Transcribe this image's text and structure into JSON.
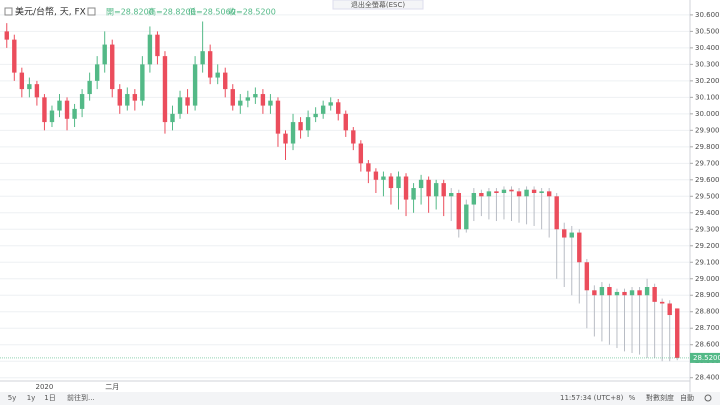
{
  "chart_data": {
    "type": "candlestick",
    "title": "美元/台幣, 天, FX",
    "ohlc_labels": [
      "開=28.8200",
      "高=28.8200",
      "低=28.5060",
      "收=28.5200"
    ],
    "last_price_label": "28.5200",
    "up_color": "#53b987",
    "down_color": "#eb4d5c",
    "categories": [
      null,
      null,
      null,
      null,
      null,
      "2020",
      null,
      null,
      null,
      null,
      null,
      null,
      null,
      null,
      "二月",
      null,
      null,
      null,
      null,
      null,
      null,
      null,
      null,
      null,
      null,
      null,
      null,
      null,
      null,
      null,
      null,
      null,
      null,
      null,
      null,
      null,
      null,
      null,
      null,
      null,
      null,
      null,
      null,
      null,
      null,
      null,
      null,
      null,
      null,
      null,
      null,
      null,
      null,
      null,
      null,
      null,
      null,
      null,
      null,
      null,
      null,
      null,
      null,
      null,
      null,
      null,
      null,
      null,
      null,
      null,
      null,
      null,
      null,
      null,
      null,
      null,
      null,
      null,
      null,
      null,
      null,
      null,
      null,
      null,
      null,
      null,
      null,
      null,
      null,
      null
    ],
    "open": [
      30.5,
      30.45,
      30.25,
      30.15,
      30.18,
      30.1,
      29.95,
      30.02,
      30.08,
      29.97,
      30.03,
      30.12,
      30.2,
      30.3,
      30.42,
      30.15,
      30.05,
      30.12,
      30.08,
      30.3,
      30.48,
      30.35,
      29.95,
      30.0,
      30.1,
      30.05,
      30.3,
      30.38,
      30.22,
      30.25,
      30.15,
      30.05,
      30.08,
      30.1,
      30.12,
      30.05,
      30.08,
      29.88,
      29.82,
      29.95,
      29.9,
      29.98,
      30.0,
      30.05,
      30.07,
      30.0,
      29.9,
      29.82,
      29.7,
      29.65,
      29.6,
      29.62,
      29.55,
      29.62,
      29.48,
      29.55,
      29.6,
      29.5,
      29.58,
      29.5,
      29.52,
      29.3,
      29.45,
      29.52,
      29.5,
      29.53,
      29.52,
      29.54,
      29.53,
      29.5,
      29.54,
      29.52,
      29.53,
      29.5,
      29.3,
      29.25,
      29.28,
      29.1,
      28.93,
      28.9,
      28.95,
      28.9,
      28.92,
      28.9,
      28.93,
      28.9,
      28.95,
      28.86,
      28.85,
      28.82
    ],
    "high": [
      30.55,
      30.48,
      30.28,
      30.22,
      30.2,
      30.12,
      30.05,
      30.12,
      30.1,
      30.06,
      30.15,
      30.25,
      30.35,
      30.5,
      30.45,
      30.18,
      30.16,
      30.15,
      30.35,
      30.53,
      30.5,
      30.38,
      30.05,
      30.14,
      30.15,
      30.35,
      30.56,
      30.42,
      30.3,
      30.28,
      30.18,
      30.12,
      30.14,
      30.16,
      30.15,
      30.12,
      30.1,
      29.9,
      30.0,
      29.98,
      30.02,
      30.04,
      30.08,
      30.1,
      30.09,
      30.02,
      29.92,
      29.84,
      29.72,
      29.67,
      29.65,
      29.64,
      29.65,
      29.64,
      29.58,
      29.63,
      29.62,
      29.6,
      29.6,
      29.55,
      29.54,
      29.48,
      29.55,
      29.54,
      29.55,
      29.55,
      29.56,
      29.56,
      29.55,
      29.56,
      29.56,
      29.55,
      29.55,
      29.52,
      29.34,
      29.32,
      29.3,
      29.12,
      28.96,
      28.98,
      28.97,
      28.94,
      28.94,
      28.95,
      28.95,
      29.0,
      28.97,
      28.88,
      28.87,
      28.82
    ],
    "low": [
      30.4,
      30.2,
      30.1,
      30.1,
      30.05,
      29.9,
      29.92,
      29.98,
      29.9,
      29.92,
      29.98,
      30.08,
      30.15,
      30.25,
      30.1,
      30.0,
      30.02,
      30.02,
      30.05,
      30.25,
      30.3,
      29.88,
      29.9,
      29.97,
      30.0,
      30.02,
      30.25,
      30.18,
      30.18,
      30.1,
      30.02,
      30.0,
      30.04,
      30.06,
      30.0,
      30.0,
      29.8,
      29.72,
      29.78,
      29.85,
      29.86,
      29.95,
      29.97,
      30.02,
      29.96,
      29.86,
      29.78,
      29.65,
      29.58,
      29.52,
      29.5,
      29.45,
      29.42,
      29.38,
      29.4,
      29.45,
      29.4,
      29.42,
      29.38,
      29.35,
      29.25,
      29.28,
      29.35,
      29.38,
      29.36,
      29.35,
      29.36,
      29.35,
      29.34,
      29.33,
      29.32,
      29.3,
      29.25,
      29.0,
      28.95,
      28.9,
      28.85,
      28.7,
      28.65,
      28.62,
      28.6,
      28.58,
      28.56,
      28.55,
      28.54,
      28.52,
      28.52,
      28.5,
      28.5,
      28.506
    ],
    "close": [
      30.45,
      30.25,
      30.15,
      30.18,
      30.1,
      29.95,
      30.02,
      30.08,
      29.97,
      30.03,
      30.12,
      30.2,
      30.3,
      30.42,
      30.15,
      30.05,
      30.12,
      30.08,
      30.3,
      30.48,
      30.35,
      29.95,
      30.0,
      30.1,
      30.05,
      30.3,
      30.38,
      30.22,
      30.25,
      30.15,
      30.05,
      30.08,
      30.1,
      30.12,
      30.05,
      30.08,
      29.88,
      29.82,
      29.95,
      29.9,
      29.98,
      30.0,
      30.05,
      30.07,
      30.0,
      29.9,
      29.82,
      29.7,
      29.65,
      29.6,
      29.62,
      29.55,
      29.62,
      29.48,
      29.55,
      29.6,
      29.5,
      29.58,
      29.5,
      29.52,
      29.3,
      29.45,
      29.52,
      29.5,
      29.53,
      29.52,
      29.54,
      29.53,
      29.5,
      29.54,
      29.52,
      29.53,
      29.5,
      29.3,
      29.25,
      29.28,
      29.1,
      28.93,
      28.9,
      28.95,
      28.9,
      28.92,
      28.9,
      28.93,
      28.9,
      28.95,
      28.86,
      28.85,
      28.78,
      28.52
    ],
    "ylim": [
      28.38,
      30.66
    ],
    "yticks": [
      {
        "value": 30.6,
        "label": "30.6000"
      },
      {
        "value": 30.5,
        "label": "30.5000"
      },
      {
        "value": 30.4,
        "label": "30.4000"
      },
      {
        "value": 30.3,
        "label": "30.3000"
      },
      {
        "value": 30.2,
        "label": "30.2000"
      },
      {
        "value": 30.1,
        "label": "30.1000"
      },
      {
        "value": 30.0,
        "label": "30.0000"
      },
      {
        "value": 29.9,
        "label": "29.9000"
      },
      {
        "value": 29.8,
        "label": "29.8000"
      },
      {
        "value": 29.7,
        "label": "29.7000"
      },
      {
        "value": 29.6,
        "label": "29.6000"
      },
      {
        "value": 29.5,
        "label": "29.5000"
      },
      {
        "value": 29.4,
        "label": "29.4000"
      },
      {
        "value": 29.3,
        "label": "29.3000"
      },
      {
        "value": 29.2,
        "label": "29.2000"
      },
      {
        "value": 29.1,
        "label": "29.1000"
      },
      {
        "value": 29.0,
        "label": "29.0000"
      },
      {
        "value": 28.9,
        "label": "28.9000"
      },
      {
        "value": 28.8,
        "label": "28.8000"
      },
      {
        "value": 28.7,
        "label": "28.7000"
      },
      {
        "value": 28.6,
        "label": "28.6000"
      },
      {
        "value": 28.5,
        "label": "28.5000"
      },
      {
        "value": 28.4,
        "label": "28.4000"
      }
    ],
    "grid": true
  },
  "ui": {
    "exit_fullscreen": "退出全螢幕(ESC)",
    "ranges": [
      "5y",
      "1y",
      "1日"
    ],
    "goto": "前往到...",
    "clock": "11:57:34 (UTC+8)",
    "percent": "%",
    "log_scale": "對數刻度",
    "auto": "自動"
  }
}
